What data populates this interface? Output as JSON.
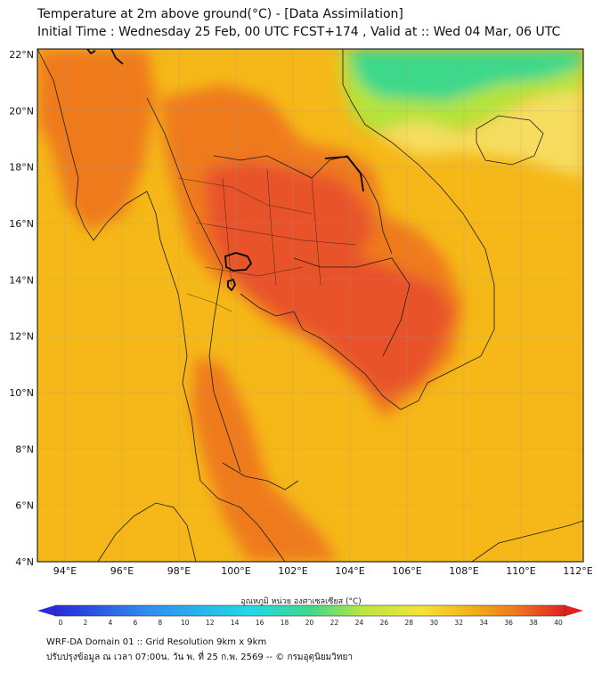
{
  "title_line1": "Temperature at 2m above ground(°C) - [Data Assimilation]",
  "title_line2": "Initial Time : Wednesday 25 Feb, 00 UTC FCST+174 , Valid at :: Wed 04 Mar, 06 UTC",
  "lat_ticks": [
    "22°N",
    "20°N",
    "18°N",
    "16°N",
    "14°N",
    "12°N",
    "10°N",
    "8°N",
    "6°N",
    "4°N"
  ],
  "lon_ticks": [
    "94°E",
    "96°E",
    "98°E",
    "100°E",
    "102°E",
    "104°E",
    "106°E",
    "108°E",
    "110°E",
    "112°E"
  ],
  "colorbar": {
    "label": "อุณหภูมิ หน่วย องศาเซลเซียส (°C)",
    "ticks": [
      "0",
      "2",
      "4",
      "6",
      "8",
      "10",
      "12",
      "14",
      "16",
      "18",
      "20",
      "22",
      "24",
      "26",
      "28",
      "30",
      "32",
      "34",
      "36",
      "38",
      "40"
    ]
  },
  "footer_line1": "WRF-DA Domain 01 :: Grid Resolution 9km x 9km",
  "footer_line2": "ปรับปรุงข้อมูล ณ เวลา 07:00น. วัน พ. ที่ 25 ก.พ. 2569 -- © กรมอุตุนิยมวิทยา",
  "colors": {
    "warm_base": "#f5b818",
    "hot": "#ef7a1e",
    "very_hot": "#e8532a",
    "cool_green": "#3ed88a",
    "yellow_green": "#b5e33a",
    "light_yellow": "#f6dd60"
  }
}
